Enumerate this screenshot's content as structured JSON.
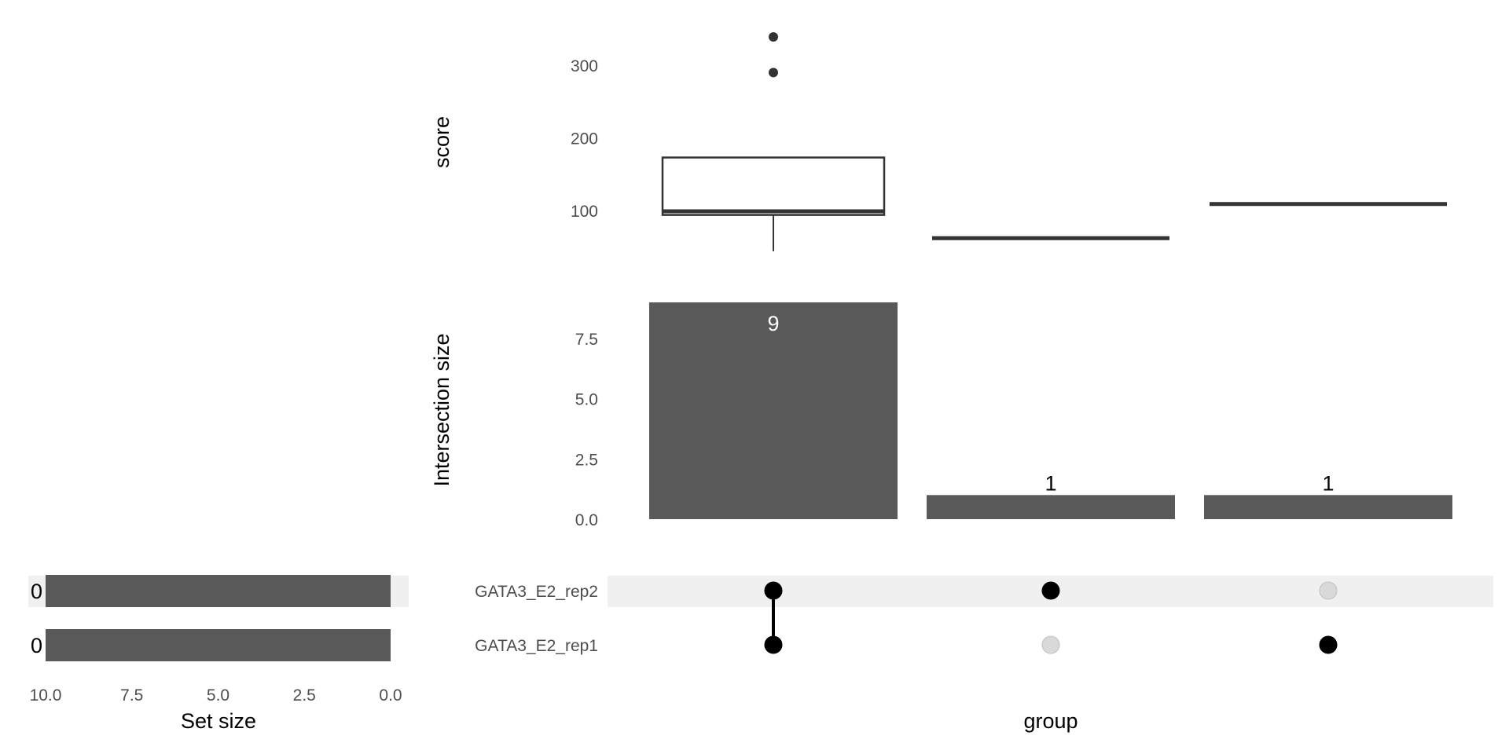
{
  "colors": {
    "bar": "#595959",
    "dot_active": "#000000",
    "dot_inactive": "#d9d9d9",
    "stripe": "#f0f0f0",
    "box_line": "#333333",
    "tick_text": "#4d4d4d"
  },
  "chart_data": [
    {
      "type": "boxplot",
      "ylabel": "score",
      "yticks": [
        100,
        200,
        300
      ],
      "groups": [
        {
          "q1": 95,
          "median": 100,
          "q3": 174,
          "whisker_low": 45,
          "whisker_high": 174,
          "outliers": [
            291,
            340
          ]
        },
        {
          "q1": 63,
          "median": 63,
          "q3": 63,
          "whisker_low": 63,
          "whisker_high": 63,
          "outliers": []
        },
        {
          "q1": 110,
          "median": 110,
          "q3": 110,
          "whisker_low": 110,
          "whisker_high": 110,
          "outliers": []
        }
      ]
    },
    {
      "type": "bar",
      "ylabel": "Intersection size",
      "yticks": [
        "0.0",
        "2.5",
        "5.0",
        "7.5"
      ],
      "ylim": [
        0,
        9
      ],
      "values": [
        9,
        1,
        1
      ],
      "labels": [
        "9",
        "1",
        "1"
      ]
    },
    {
      "type": "matrix",
      "xlabel": "group",
      "sets": [
        "GATA3_E2_rep2",
        "GATA3_E2_rep1"
      ],
      "membership": [
        [
          true,
          true
        ],
        [
          true,
          false
        ],
        [
          false,
          true
        ]
      ]
    },
    {
      "type": "bar",
      "orientation": "horizontal",
      "xlabel": "Set size",
      "xticks": [
        "10.0",
        "7.5",
        "5.0",
        "2.5",
        "0.0"
      ],
      "xlim": [
        10,
        0
      ],
      "values": [
        0,
        0
      ],
      "labels": [
        "0",
        "0"
      ]
    }
  ]
}
